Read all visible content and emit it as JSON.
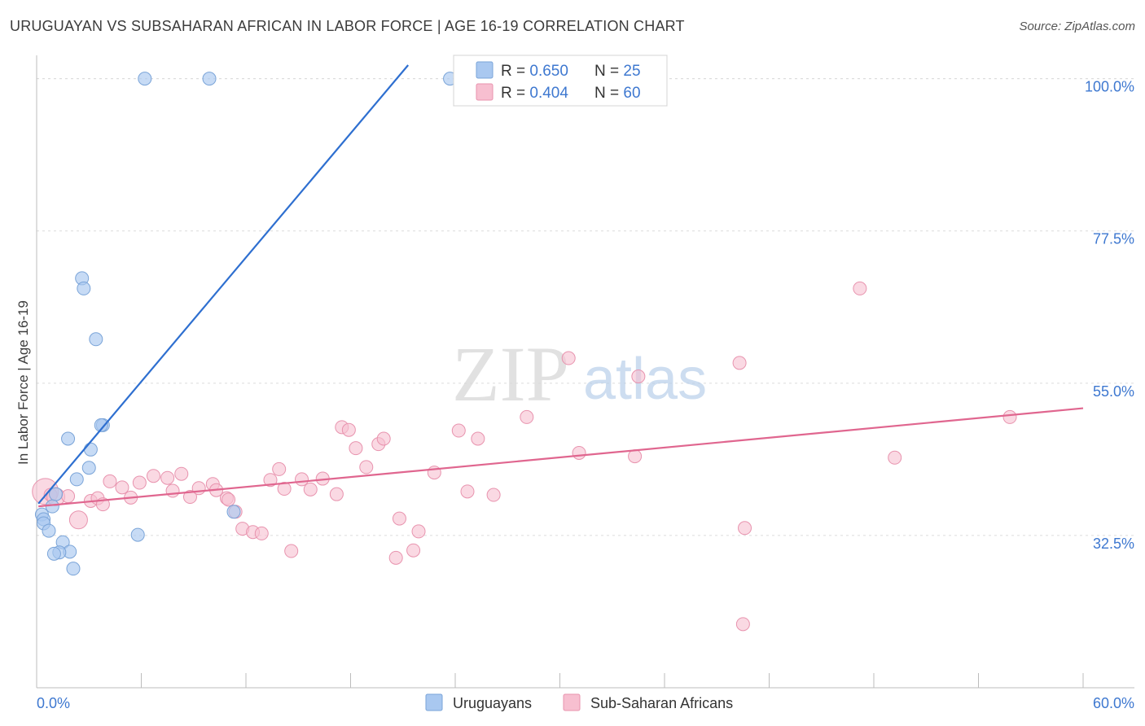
{
  "header": {
    "title": "URUGUAYAN VS SUBSAHARAN AFRICAN IN LABOR FORCE | AGE 16-19 CORRELATION CHART",
    "source": "Source: ZipAtlas.com"
  },
  "watermark": {
    "zip": "ZIP",
    "atlas": "atlas"
  },
  "colors": {
    "uruguayans_fill": "#a9c8f0",
    "uruguayans_stroke": "#7aa4d8",
    "uruguayans_line": "#2e6fd0",
    "subsaharan_fill": "#f7bfd0",
    "subsaharan_stroke": "#e893ae",
    "subsaharan_line": "#e0668f",
    "tick_label": "#3e78d0",
    "grid": "#dcdcdc"
  },
  "chart_data": {
    "type": "scatter",
    "title": "URUGUAYAN VS SUBSAHARAN AFRICAN IN LABOR FORCE | AGE 16-19 CORRELATION CHART",
    "xlabel": "",
    "ylabel": "In Labor Force | Age 16-19",
    "xlim": [
      0,
      60
    ],
    "ylim": [
      10,
      102
    ],
    "x_tick_labels": [
      "0.0%",
      "60.0%"
    ],
    "y_ticks": [
      32.5,
      55.0,
      77.5,
      100.0
    ],
    "y_tick_labels": [
      "32.5%",
      "55.0%",
      "77.5%",
      "100.0%"
    ],
    "grid": true,
    "legend": [
      {
        "name": "Uruguayans",
        "r_label": "R = ",
        "r": "0.650",
        "n_label": "N = ",
        "n": "25"
      },
      {
        "name": "Sub-Saharan Africans",
        "r_label": "R = ",
        "r": "0.404",
        "n_label": "N = ",
        "n": "60"
      }
    ],
    "series": [
      {
        "name": "Uruguayans",
        "points": [
          [
            6.2,
            100
          ],
          [
            9.9,
            100
          ],
          [
            23.7,
            100
          ],
          [
            2.6,
            70.5
          ],
          [
            2.7,
            69
          ],
          [
            3.4,
            61.5
          ],
          [
            3.8,
            48.8
          ],
          [
            3.7,
            48.8
          ],
          [
            1.8,
            46.8
          ],
          [
            3.1,
            45.2
          ],
          [
            3.0,
            42.5
          ],
          [
            2.3,
            40.8
          ],
          [
            1.1,
            38.6
          ],
          [
            0.9,
            36.8
          ],
          [
            0.3,
            35.6
          ],
          [
            0.4,
            34.9
          ],
          [
            0.4,
            34.3
          ],
          [
            0.7,
            33.2
          ],
          [
            1.5,
            31.5
          ],
          [
            1.9,
            30.1
          ],
          [
            1.3,
            30.0
          ],
          [
            1.0,
            29.8
          ],
          [
            2.1,
            27.6
          ],
          [
            5.8,
            32.6
          ],
          [
            11.3,
            36.0
          ]
        ],
        "trend": {
          "x": [
            0.1,
            21.3
          ],
          "y": [
            37.2,
            102.0
          ]
        }
      },
      {
        "name": "Sub-Saharan Africans",
        "points": [
          [
            0.5,
            39.0
          ],
          [
            0.8,
            38.5
          ],
          [
            1.1,
            38.2
          ],
          [
            1.8,
            38.3
          ],
          [
            2.4,
            34.8
          ],
          [
            3.1,
            37.6
          ],
          [
            3.5,
            38.0
          ],
          [
            3.8,
            37.1
          ],
          [
            4.2,
            40.5
          ],
          [
            4.9,
            39.6
          ],
          [
            5.4,
            38.1
          ],
          [
            5.9,
            40.3
          ],
          [
            6.7,
            41.3
          ],
          [
            7.5,
            41.0
          ],
          [
            7.8,
            39.1
          ],
          [
            8.3,
            41.6
          ],
          [
            8.8,
            38.2
          ],
          [
            9.3,
            39.5
          ],
          [
            10.1,
            40.1
          ],
          [
            10.3,
            39.2
          ],
          [
            10.9,
            38.0
          ],
          [
            11.4,
            36.0
          ],
          [
            11.8,
            33.5
          ],
          [
            12.4,
            33.0
          ],
          [
            12.9,
            32.8
          ],
          [
            13.4,
            40.7
          ],
          [
            13.9,
            42.3
          ],
          [
            14.2,
            39.4
          ],
          [
            14.6,
            30.2
          ],
          [
            15.2,
            40.8
          ],
          [
            15.7,
            39.3
          ],
          [
            16.4,
            40.9
          ],
          [
            17.2,
            38.6
          ],
          [
            17.5,
            48.5
          ],
          [
            17.9,
            48.1
          ],
          [
            18.3,
            45.4
          ],
          [
            18.9,
            42.6
          ],
          [
            19.6,
            46.0
          ],
          [
            19.9,
            46.8
          ],
          [
            20.8,
            35.0
          ],
          [
            20.6,
            29.2
          ],
          [
            21.6,
            30.3
          ],
          [
            21.9,
            33.1
          ],
          [
            22.8,
            41.8
          ],
          [
            24.2,
            48.0
          ],
          [
            24.7,
            39.0
          ],
          [
            25.3,
            46.8
          ],
          [
            26.2,
            38.5
          ],
          [
            28.1,
            50.0
          ],
          [
            30.5,
            58.7
          ],
          [
            31.1,
            44.7
          ],
          [
            34.3,
            44.2
          ],
          [
            34.5,
            56.0
          ],
          [
            40.3,
            58.0
          ],
          [
            40.6,
            33.6
          ],
          [
            40.5,
            19.4
          ],
          [
            47.2,
            69.0
          ],
          [
            49.2,
            44.0
          ],
          [
            55.8,
            50.0
          ],
          [
            11.0,
            37.8
          ]
        ],
        "trend": {
          "x": [
            0.1,
            60.0
          ],
          "y": [
            36.8,
            51.3
          ]
        }
      }
    ]
  }
}
